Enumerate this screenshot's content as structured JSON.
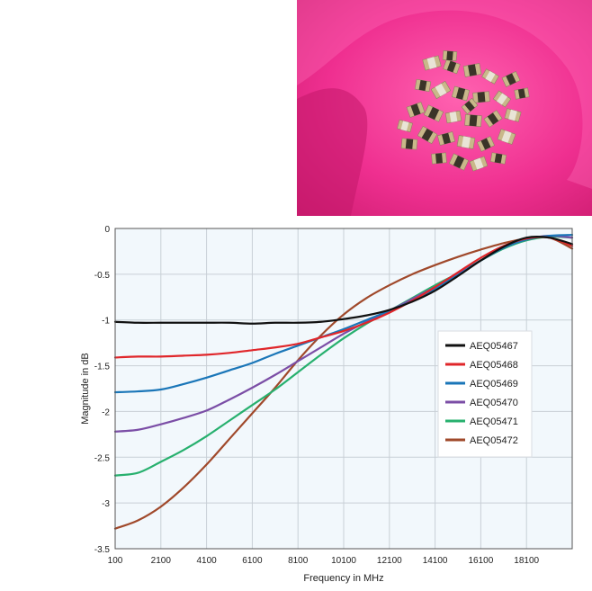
{
  "photo": {
    "subject": "pile of small gold-terminated SMD chip components on a pink surface",
    "colors": {
      "background": "#ee2f8f",
      "highlight": "#ff6fb9",
      "shadow": "#c81a6d",
      "component_body": "#c9b88a",
      "component_dark": "#3a3428"
    }
  },
  "chart_data": {
    "type": "line",
    "title": "",
    "xlabel": "Frequency in MHz",
    "ylabel": "Magnitude in dB",
    "xlim": [
      100,
      20100
    ],
    "ylim": [
      -3.5,
      0
    ],
    "xticks": [
      100,
      2100,
      4100,
      6100,
      8100,
      10100,
      12100,
      14100,
      16100,
      18100
    ],
    "xtick_labels": [
      "100",
      "2100",
      "4100",
      "6100",
      "8100",
      "10100",
      "12100",
      "14100",
      "16100",
      "18100"
    ],
    "yticks": [
      0,
      -0.5,
      -1,
      -1.5,
      -2,
      -2.5,
      -3,
      -3.5
    ],
    "ytick_labels": [
      "0",
      "-0.5",
      "-1",
      "-1.5",
      "-2",
      "-2.5",
      "-3",
      "-3.5"
    ],
    "grid": true,
    "legend_position": "center-right",
    "x": [
      100,
      1100,
      2100,
      3100,
      4100,
      5100,
      6100,
      7100,
      8100,
      9100,
      10100,
      11100,
      12100,
      13100,
      14100,
      15100,
      16100,
      17100,
      18100,
      19100,
      20100
    ],
    "series": [
      {
        "name": "AEQ05467",
        "color": "#111111",
        "values": [
          -1.02,
          -1.03,
          -1.03,
          -1.03,
          -1.03,
          -1.03,
          -1.04,
          -1.03,
          -1.03,
          -1.02,
          -0.99,
          -0.95,
          -0.89,
          -0.8,
          -0.68,
          -0.52,
          -0.35,
          -0.2,
          -0.1,
          -0.1,
          -0.17
        ]
      },
      {
        "name": "AEQ05468",
        "color": "#e0262a",
        "values": [
          -1.41,
          -1.4,
          -1.4,
          -1.39,
          -1.38,
          -1.36,
          -1.33,
          -1.3,
          -1.26,
          -1.19,
          -1.12,
          -1.03,
          -0.92,
          -0.79,
          -0.64,
          -0.48,
          -0.32,
          -0.19,
          -0.11,
          -0.1,
          -0.19
        ]
      },
      {
        "name": "AEQ05469",
        "color": "#1a76b8",
        "values": [
          -1.79,
          -1.78,
          -1.76,
          -1.7,
          -1.63,
          -1.55,
          -1.47,
          -1.37,
          -1.28,
          -1.19,
          -1.1,
          -1.0,
          -0.9,
          -0.79,
          -0.66,
          -0.51,
          -0.35,
          -0.21,
          -0.12,
          -0.08,
          -0.07
        ]
      },
      {
        "name": "AEQ05470",
        "color": "#7b4ea6",
        "values": [
          -2.22,
          -2.2,
          -2.14,
          -2.07,
          -1.99,
          -1.87,
          -1.74,
          -1.6,
          -1.45,
          -1.3,
          -1.15,
          -1.02,
          -0.9,
          -0.77,
          -0.64,
          -0.5,
          -0.35,
          -0.21,
          -0.12,
          -0.08,
          -0.1
        ]
      },
      {
        "name": "AEQ05471",
        "color": "#27b06e",
        "values": [
          -2.7,
          -2.67,
          -2.55,
          -2.42,
          -2.27,
          -2.1,
          -1.93,
          -1.76,
          -1.57,
          -1.38,
          -1.2,
          -1.04,
          -0.9,
          -0.76,
          -0.62,
          -0.49,
          -0.35,
          -0.22,
          -0.13,
          -0.09,
          -0.1
        ]
      },
      {
        "name": "AEQ05472",
        "color": "#a0492b",
        "values": [
          -3.28,
          -3.19,
          -3.04,
          -2.83,
          -2.58,
          -2.3,
          -2.02,
          -1.74,
          -1.44,
          -1.17,
          -0.94,
          -0.76,
          -0.62,
          -0.5,
          -0.4,
          -0.31,
          -0.23,
          -0.16,
          -0.11,
          -0.1,
          -0.22
        ]
      }
    ]
  }
}
